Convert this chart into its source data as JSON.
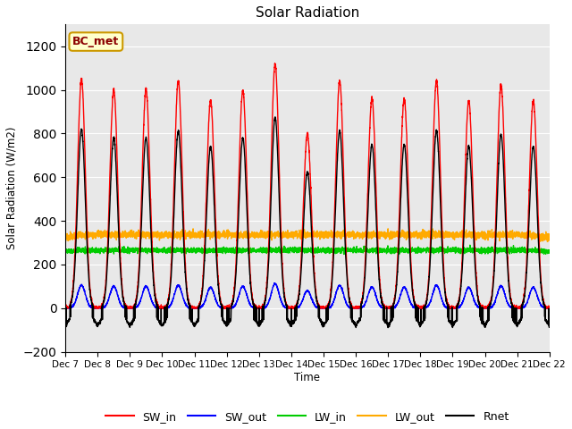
{
  "title": "Solar Radiation",
  "ylabel": "Solar Radiation (W/m2)",
  "xlabel": "Time",
  "ylim": [
    -200,
    1300
  ],
  "yticks": [
    -200,
    0,
    200,
    400,
    600,
    800,
    1000,
    1200
  ],
  "background_color": "#e8e8e8",
  "label_box_text": "BC_met",
  "label_box_facecolor": "#ffffcc",
  "label_box_edgecolor": "#cc9900",
  "series_colors": {
    "SW_in": "#ff0000",
    "SW_out": "#0000ff",
    "LW_in": "#00cc00",
    "LW_out": "#ffaa00",
    "Rnet": "#000000"
  },
  "n_days": 15,
  "start_day": 7,
  "points_per_day": 288,
  "sw_in_peaks": [
    1050,
    1000,
    1000,
    1040,
    950,
    1000,
    1120,
    800,
    1040,
    960,
    960,
    1040,
    950,
    1020,
    950
  ],
  "lw_in_base": 255,
  "lw_out_base": 305,
  "legend_entries": [
    "SW_in",
    "SW_out",
    "LW_in",
    "LW_out",
    "Rnet"
  ]
}
